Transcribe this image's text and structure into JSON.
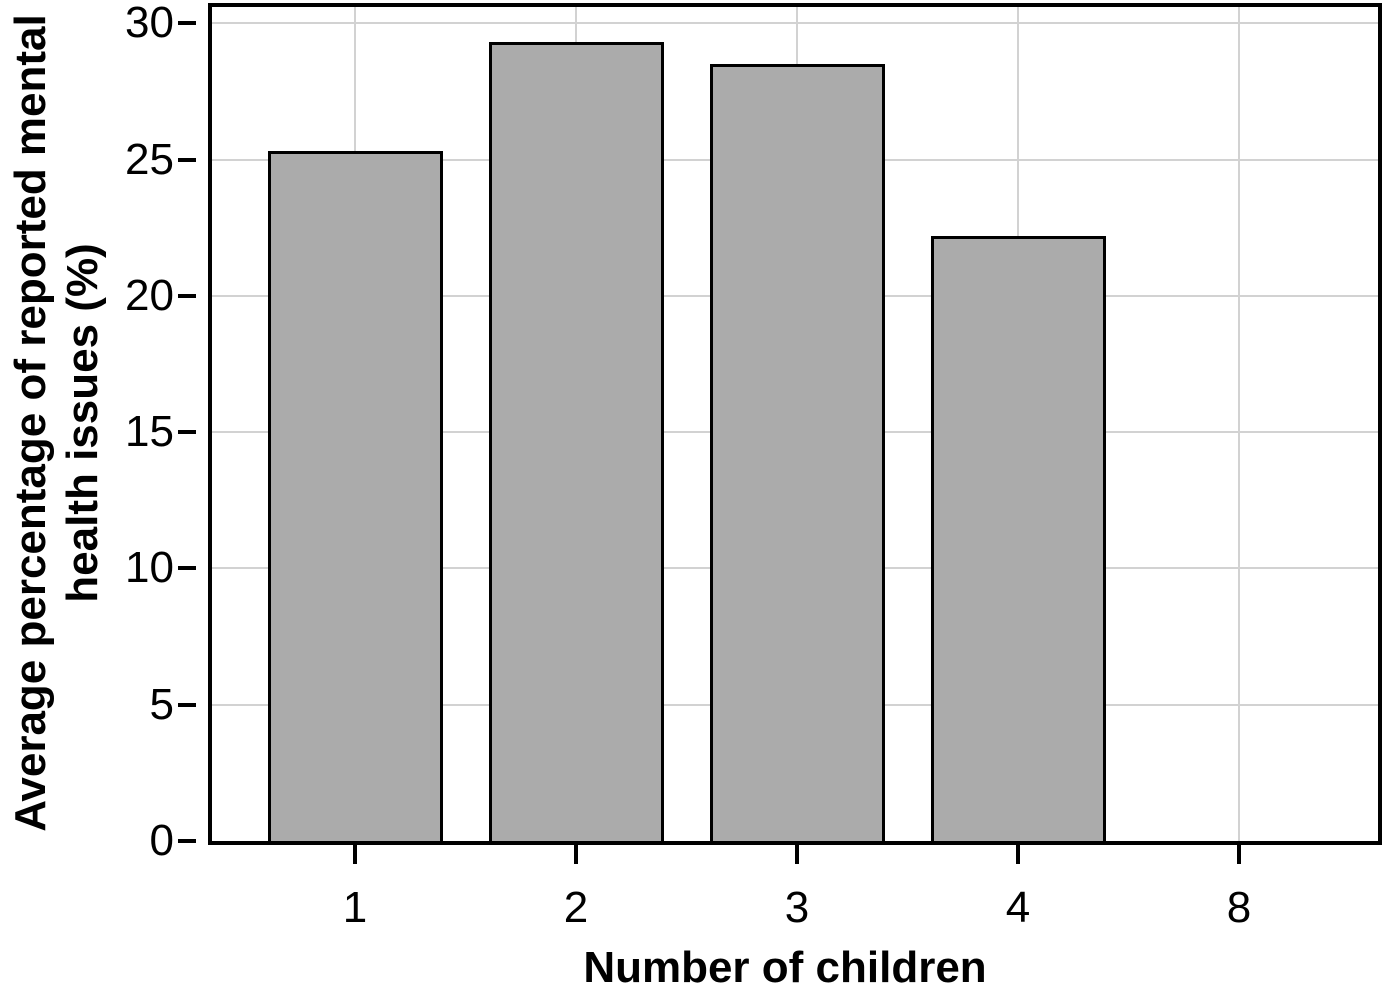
{
  "figure": {
    "background_color": "#ffffff",
    "frame_color": "#000000"
  },
  "axes": {
    "y_label": "Average percentage of reported mental\nhealth issues (%)",
    "x_label": "Number of children"
  },
  "chart_data": {
    "type": "bar",
    "categories": [
      "1",
      "2",
      "3",
      "4",
      "8"
    ],
    "values": [
      25.3,
      29.3,
      28.5,
      22.2,
      0
    ],
    "title": "",
    "xlabel": "Number of children",
    "ylabel": "Average percentage of reported mental health issues (%)",
    "ylim": [
      0,
      30.6
    ],
    "yticks": [
      0,
      5,
      10,
      15,
      20,
      25,
      30
    ],
    "grid": true,
    "legend": "none",
    "bar_fill_color": "#ababab",
    "bar_border_color": "#000000",
    "gridline_color": "#d2d2d2",
    "tick_color": "#000000"
  }
}
